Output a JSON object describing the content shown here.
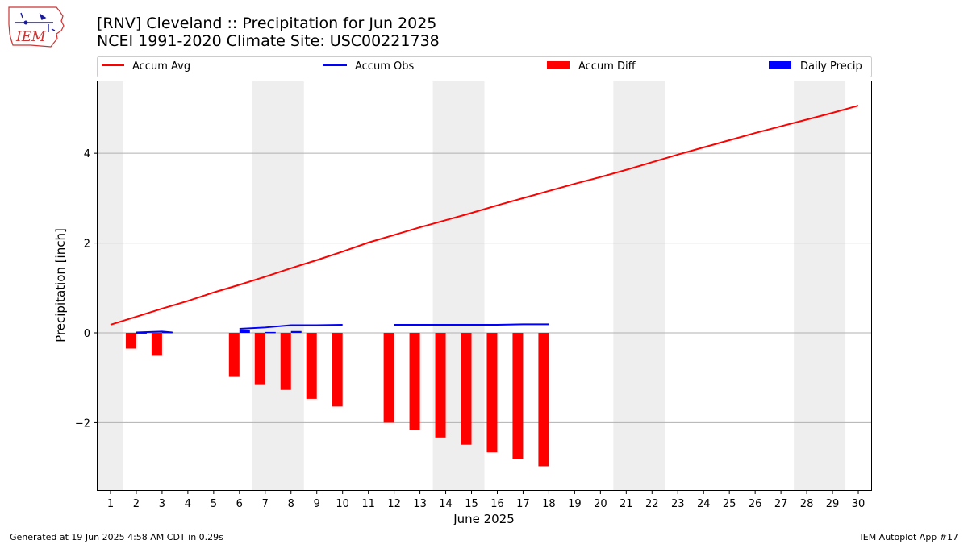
{
  "header": {
    "title_line1": "[RNV] Cleveland :: Precipitation for Jun 2025",
    "title_line2": "NCEI 1991-2020 Climate Site: USC00221738"
  },
  "logo": {
    "text": "IEM",
    "icon": "iem-iowa-logo"
  },
  "footer": {
    "left": "Generated at 19 Jun 2025 4:58 AM CDT in 0.29s",
    "right": "IEM Autoplot App #17"
  },
  "colors": {
    "avg": "#ff0000",
    "obs": "#0000ff",
    "diff": "#ff0000",
    "daily": "#0000ff",
    "weekend_shade": "#eeeeee",
    "grid": "#b0b0b0"
  },
  "chart_data": {
    "type": "bar",
    "xlabel": "June 2025",
    "ylabel": "Precipitation [inch]",
    "xlim": [
      0.5,
      30.5
    ],
    "ylim": [
      -3.5,
      5.6
    ],
    "grid": "y",
    "legend_placement": "top",
    "x_ticks": [
      1,
      2,
      3,
      4,
      5,
      6,
      7,
      8,
      9,
      10,
      11,
      12,
      13,
      14,
      15,
      16,
      17,
      18,
      19,
      20,
      21,
      22,
      23,
      24,
      25,
      26,
      27,
      28,
      29,
      30
    ],
    "y_ticks": [
      -2,
      0,
      2,
      4
    ],
    "y_tick_labels": [
      "−2",
      "0",
      "2",
      "4"
    ],
    "shaded_days": [
      [
        0.5,
        1.5
      ],
      [
        6.5,
        8.5
      ],
      [
        13.5,
        15.5
      ],
      [
        20.5,
        22.5
      ],
      [
        27.5,
        29.5
      ]
    ],
    "legend": [
      "Accum Avg",
      "Accum Obs",
      "Accum Diff",
      "Daily Precip"
    ],
    "series": [
      {
        "name": "Accum Avg",
        "type": "line",
        "x": [
          1,
          2,
          3,
          4,
          5,
          6,
          7,
          8,
          9,
          10,
          11,
          12,
          13,
          14,
          15,
          16,
          17,
          18,
          19,
          20,
          21,
          22,
          23,
          24,
          25,
          26,
          27,
          28,
          29,
          30
        ],
        "values": [
          0.18,
          0.36,
          0.54,
          0.71,
          0.9,
          1.07,
          1.25,
          1.44,
          1.62,
          1.81,
          2.01,
          2.18,
          2.35,
          2.51,
          2.67,
          2.84,
          3.0,
          3.16,
          3.32,
          3.47,
          3.63,
          3.8,
          3.97,
          4.13,
          4.29,
          4.45,
          4.6,
          4.75,
          4.9,
          5.06
        ]
      },
      {
        "name": "Accum Obs",
        "type": "line",
        "segments": [
          {
            "x": [
              2,
              3,
              3.4
            ],
            "values": [
              0.01,
              0.03,
              0.01
            ]
          },
          {
            "x": [
              6,
              7,
              8,
              9,
              10
            ],
            "values": [
              0.09,
              0.12,
              0.17,
              0.17,
              0.18
            ]
          },
          {
            "x": [
              12,
              13,
              14,
              15,
              16,
              17,
              18
            ],
            "values": [
              0.18,
              0.18,
              0.18,
              0.18,
              0.18,
              0.19,
              0.19
            ]
          }
        ]
      },
      {
        "name": "Accum Diff",
        "type": "bar",
        "x": [
          2,
          3,
          6,
          7,
          8,
          9,
          10,
          12,
          13,
          14,
          15,
          16,
          17,
          18
        ],
        "values": [
          -0.35,
          -0.51,
          -0.98,
          -1.16,
          -1.27,
          -1.47,
          -1.64,
          -2.0,
          -2.17,
          -2.33,
          -2.49,
          -2.66,
          -2.81,
          -2.97
        ]
      },
      {
        "name": "Daily Precip",
        "type": "bar",
        "x": [
          2,
          3,
          6,
          7,
          8
        ],
        "values": [
          0.01,
          0.02,
          0.06,
          0.02,
          0.04
        ]
      }
    ]
  }
}
